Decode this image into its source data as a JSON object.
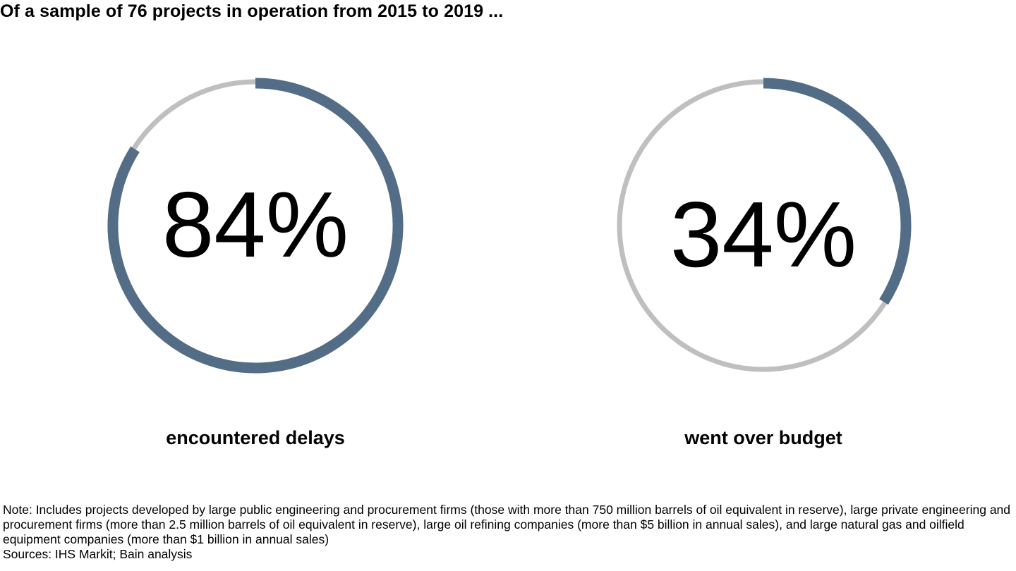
{
  "title": "Of a sample of 76 projects in operation from 2015 to 2019 ...",
  "chart_data": [
    {
      "type": "pie",
      "value": 84,
      "value_label": "84%",
      "label": "encountered delays",
      "colors": {
        "filled": "#536d86",
        "remainder": "#bfbfbf"
      }
    },
    {
      "type": "pie",
      "value": 34,
      "value_label": "34%",
      "label": "went over budget",
      "colors": {
        "filled": "#536d86",
        "remainder": "#bfbfbf"
      }
    }
  ],
  "footnote": {
    "note": "Note: Includes projects developed by large public engineering and procurement firms (those with more than 750 million barrels of oil equivalent in reserve), large private engineering and procurement firms (more than 2.5 million barrels of oil equivalent in reserve), large oil refining companies (more than $5 billion in annual sales), and large natural gas and oilfield equipment companies (more than $1 billion in annual sales)",
    "sources": "Sources: IHS Markit; Bain analysis"
  }
}
